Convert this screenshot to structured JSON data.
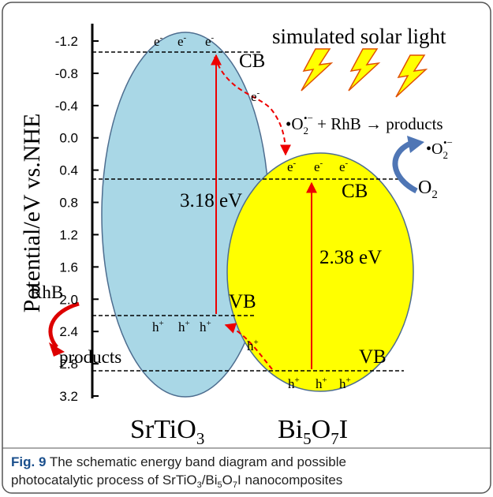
{
  "axis": {
    "label": "Potential/eV vs.NHE",
    "ticks": [
      "-1.2",
      "-0.8",
      "-0.4",
      "0.0",
      "0.4",
      "0.8",
      "1.2",
      "1.6",
      "2.0",
      "2.4",
      "2.8",
      "3.2"
    ]
  },
  "light": "simulated solar light",
  "electron": "e",
  "electron_charge": "-",
  "hole": "h",
  "hole_charge": "+",
  "cb": "CB",
  "vb": "VB",
  "srtio3_gap": "3.18 eV",
  "bi5o7i_gap": "2.38 eV",
  "reaction": {
    "radical": "•O",
    "sub": "2",
    "sup": "•−",
    "rest": " + RhB → products"
  },
  "o2": {
    "main": "O",
    "sub": "2"
  },
  "rhb": "RhB",
  "products": "products",
  "materials": [
    [
      "SrTiO",
      "3"
    ],
    [
      "Bi",
      "5",
      "O",
      "7",
      "I"
    ]
  ],
  "caption": {
    "label": "Fig. 9",
    "line1": " The schematic energy band diagram and possible",
    "line2": [
      "photocatalytic process of SrTiO",
      "3",
      "/Bi",
      "5",
      "O",
      "7",
      "I nanocomposites"
    ]
  }
}
